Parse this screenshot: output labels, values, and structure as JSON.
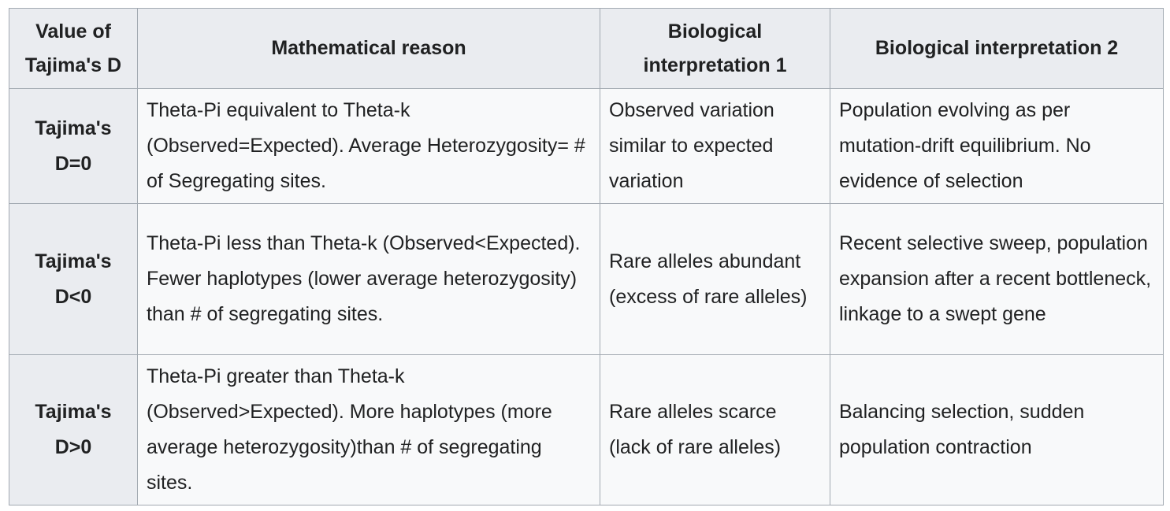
{
  "table": {
    "headers": [
      "Value of Tajima's D",
      "Mathematical reason",
      "Biological interpretation 1",
      "Biological interpretation 2"
    ],
    "rows": [
      {
        "value": "Tajima's D=0",
        "math_reason": "Theta-Pi equivalent to Theta-k (Observed=Expected). Average Heterozygosity= # of Segregating sites.",
        "bio_1": "Observed variation similar to expected variation",
        "bio_2": "Population evolving as per mutation-drift equilibrium. No evidence of selection"
      },
      {
        "value": "Tajima's D<0",
        "math_reason": "Theta-Pi less than Theta-k (Observed<Expected). Fewer haplotypes (lower average heterozygosity) than # of segregating sites.",
        "bio_1": "Rare alleles abundant (excess of rare alleles)",
        "bio_2": "Recent selective sweep, population expansion after a recent bottleneck, linkage to a swept gene"
      },
      {
        "value": "Tajima's D>0",
        "math_reason": "Theta-Pi greater than Theta-k (Observed>Expected). More haplotypes (more average heterozygosity)than # of segregating sites.",
        "bio_1": "Rare alleles scarce (lack of rare alleles)",
        "bio_2": "Balancing selection, sudden population contraction"
      }
    ]
  },
  "colors": {
    "header_bg": "#eaecf0",
    "cell_bg": "#f8f9fa",
    "border": "#a2a9b1",
    "text": "#202122"
  }
}
